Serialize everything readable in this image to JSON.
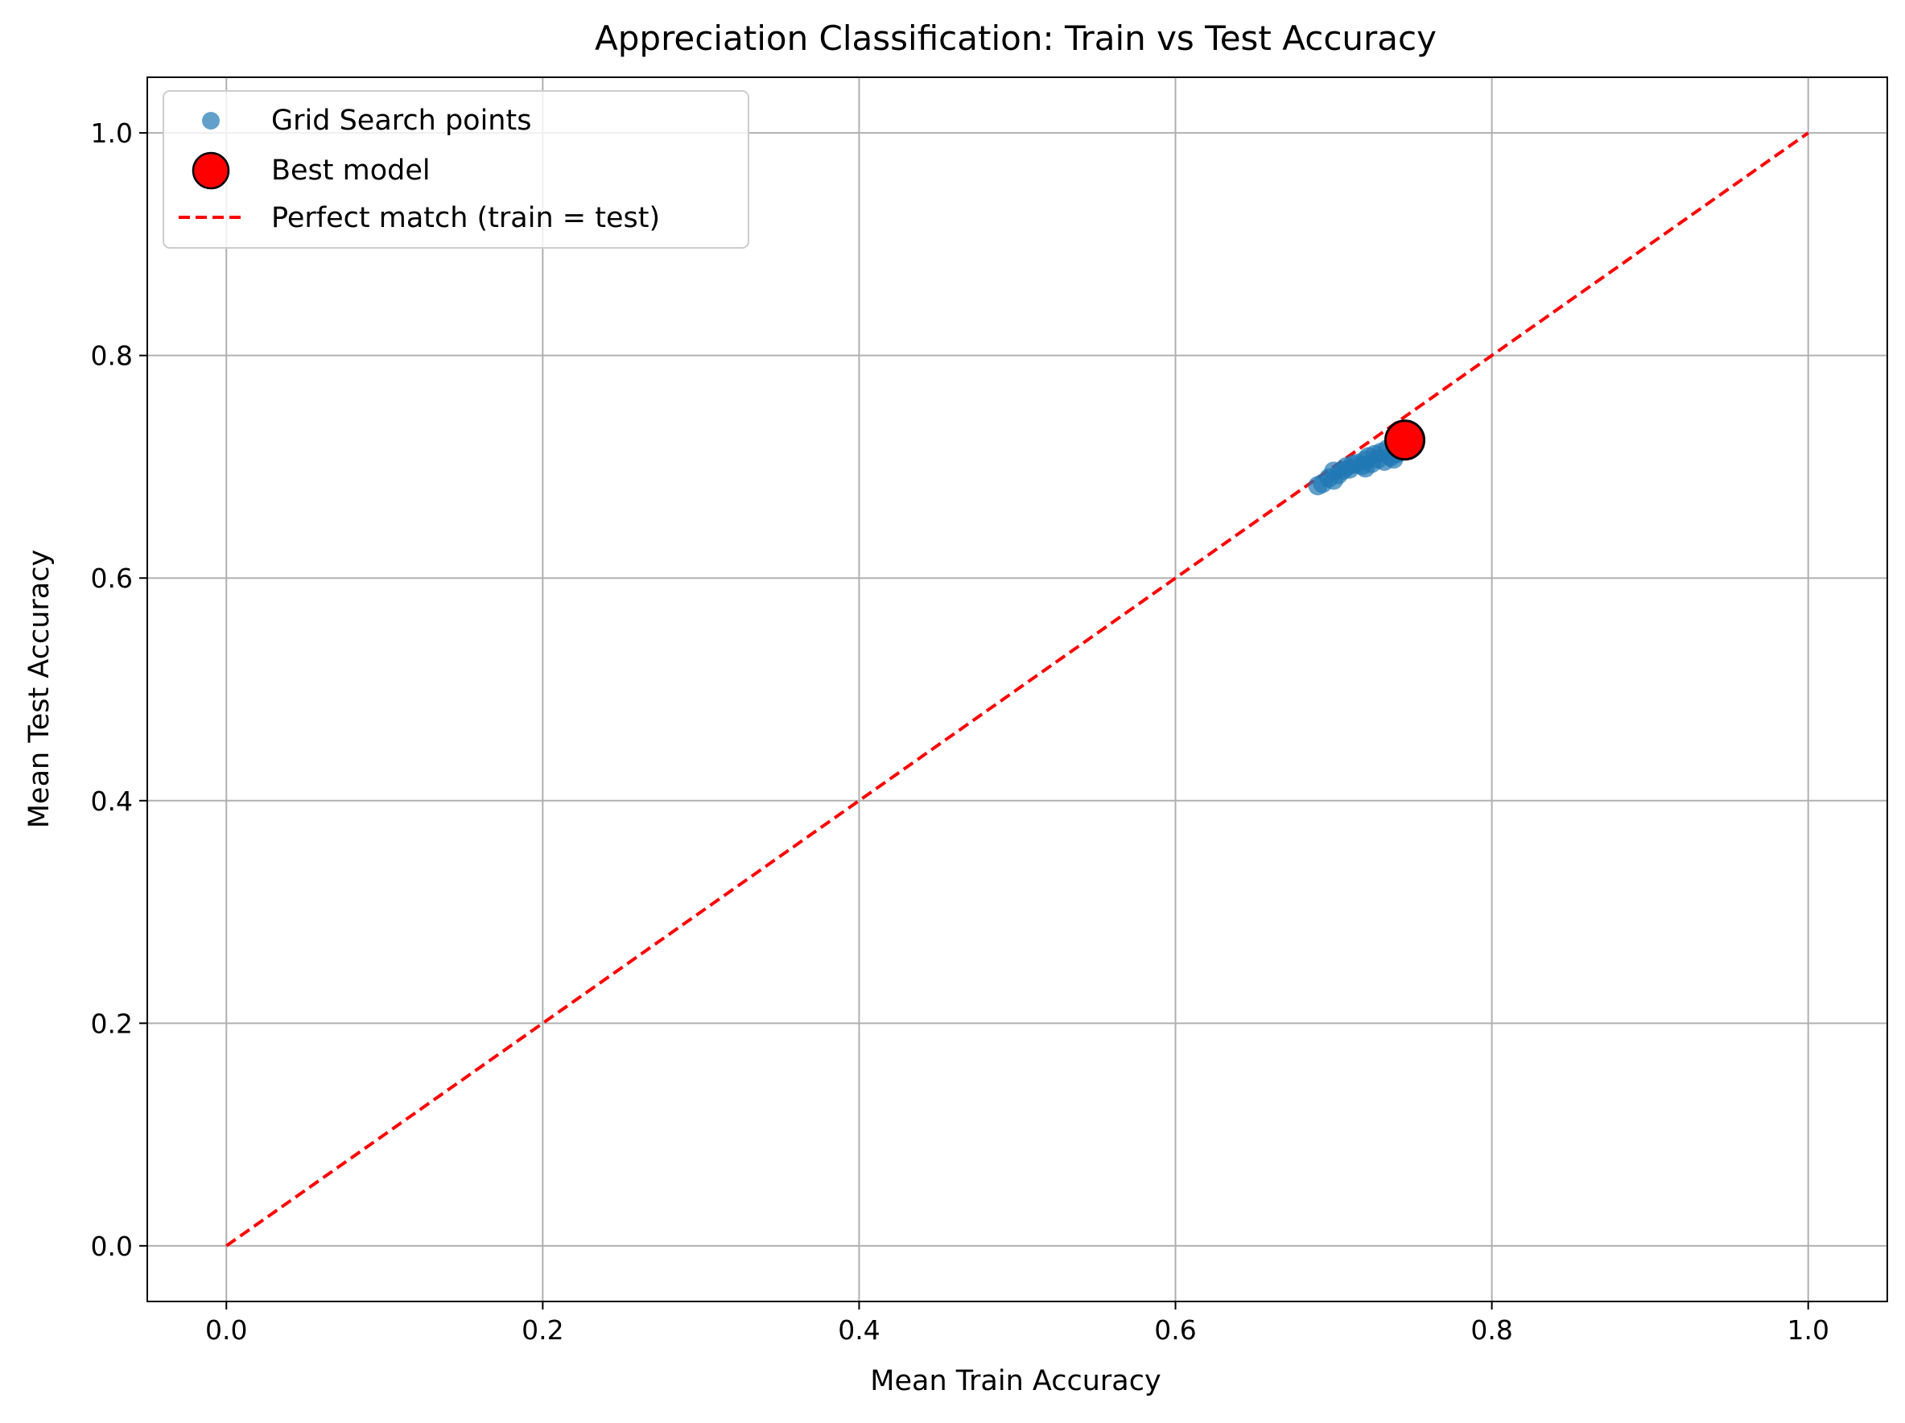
{
  "chart_data": {
    "type": "scatter",
    "title": "Appreciation Classification: Train vs Test Accuracy",
    "xlabel": "Mean Train Accuracy",
    "ylabel": "Mean Test Accuracy",
    "xlim": [
      -0.05,
      1.05
    ],
    "ylim": [
      -0.05,
      1.05
    ],
    "xticks": [
      0.0,
      0.2,
      0.4,
      0.6,
      0.8,
      1.0
    ],
    "yticks": [
      0.0,
      0.2,
      0.4,
      0.6,
      0.8,
      1.0
    ],
    "xtick_labels": [
      "0.0",
      "0.2",
      "0.4",
      "0.6",
      "0.8",
      "1.0"
    ],
    "ytick_labels": [
      "0.0",
      "0.2",
      "0.4",
      "0.6",
      "0.8",
      "1.0"
    ],
    "grid": true,
    "legend_position": "top-left",
    "legend": [
      "Grid Search points",
      "Best model",
      "Perfect match (train = test)"
    ],
    "colors": {
      "grid_points": "#1f77b4",
      "best_model": "#ff0000",
      "best_model_edge": "#000000",
      "reference_line": "#ff0000",
      "grid": "#b0b0b0"
    },
    "series": [
      {
        "name": "Grid Search points",
        "kind": "scatter",
        "points": [
          [
            0.69,
            0.683
          ],
          [
            0.693,
            0.685
          ],
          [
            0.697,
            0.69
          ],
          [
            0.7,
            0.688
          ],
          [
            0.7,
            0.696
          ],
          [
            0.703,
            0.693
          ],
          [
            0.706,
            0.697
          ],
          [
            0.708,
            0.7
          ],
          [
            0.71,
            0.698
          ],
          [
            0.712,
            0.702
          ],
          [
            0.715,
            0.703
          ],
          [
            0.718,
            0.701
          ],
          [
            0.72,
            0.699
          ],
          [
            0.72,
            0.706
          ],
          [
            0.722,
            0.709
          ],
          [
            0.724,
            0.703
          ],
          [
            0.726,
            0.711
          ],
          [
            0.728,
            0.707
          ],
          [
            0.73,
            0.713
          ],
          [
            0.732,
            0.705
          ],
          [
            0.734,
            0.716
          ],
          [
            0.736,
            0.709
          ],
          [
            0.738,
            0.707
          ],
          [
            0.74,
            0.712
          ],
          [
            0.742,
            0.718
          ]
        ]
      },
      {
        "name": "Best model",
        "kind": "scatter",
        "points": [
          [
            0.745,
            0.724
          ]
        ]
      },
      {
        "name": "Perfect match (train = test)",
        "kind": "line",
        "points": [
          [
            0.0,
            0.0
          ],
          [
            1.0,
            1.0
          ]
        ]
      }
    ]
  }
}
